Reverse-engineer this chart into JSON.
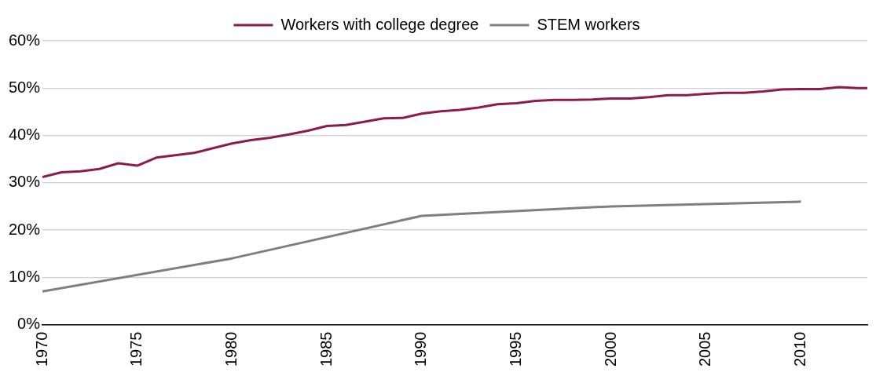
{
  "chart_data": {
    "type": "line",
    "series": [
      {
        "name": "Workers with college degree",
        "color": "#8c1c4c",
        "x": [
          1970,
          1971,
          1972,
          1973,
          1974,
          1975,
          1976,
          1977,
          1978,
          1979,
          1980,
          1981,
          1982,
          1983,
          1984,
          1985,
          1986,
          1987,
          1988,
          1989,
          1990,
          1991,
          1992,
          1993,
          1994,
          1995,
          1996,
          1997,
          1998,
          1999,
          2000,
          2001,
          2002,
          2003,
          2004,
          2005,
          2006,
          2007,
          2008,
          2009,
          2010,
          2011,
          2012,
          2013,
          2013.5
        ],
        "values": [
          31.2,
          32.2,
          32.4,
          32.9,
          34.1,
          33.6,
          35.3,
          35.8,
          36.3,
          37.3,
          38.3,
          39.0,
          39.5,
          40.2,
          41.0,
          42.0,
          42.2,
          42.9,
          43.6,
          43.7,
          44.6,
          45.1,
          45.4,
          45.9,
          46.6,
          46.8,
          47.3,
          47.5,
          47.5,
          47.6,
          47.8,
          47.8,
          48.1,
          48.5,
          48.5,
          48.8,
          49.0,
          49.0,
          49.3,
          49.7,
          49.8,
          49.8,
          50.2,
          50.0,
          50.0
        ]
      },
      {
        "name": "STEM workers",
        "color": "#7f7f7f",
        "x": [
          1970,
          1980,
          1990,
          2000,
          2010
        ],
        "values": [
          7,
          14,
          23,
          25,
          26
        ]
      }
    ],
    "xlim": [
      1970,
      2013.5
    ],
    "xticks": [
      1970,
      1975,
      1980,
      1985,
      1990,
      1995,
      2000,
      2005,
      2010
    ],
    "ylim": [
      0,
      60
    ],
    "yticks": [
      {
        "value": 0,
        "label": "0%"
      },
      {
        "value": 10,
        "label": "10%"
      },
      {
        "value": 20,
        "label": "20%"
      },
      {
        "value": 30,
        "label": "30%"
      },
      {
        "value": 40,
        "label": "40%"
      },
      {
        "value": 50,
        "label": "50%"
      },
      {
        "value": 60,
        "label": "60%"
      }
    ],
    "grid": "y",
    "legend": "top",
    "marker": "none",
    "line_style": "solid"
  }
}
